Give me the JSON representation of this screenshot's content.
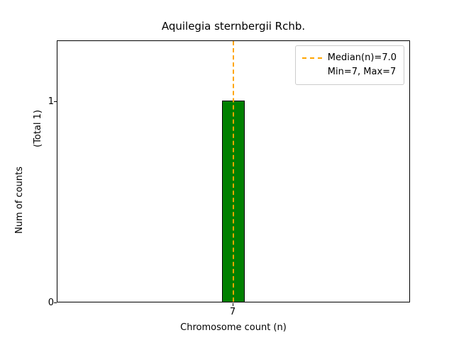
{
  "figure": {
    "title": "Aquilegia sternbergii Rchb.",
    "xlabel": "Chromosome count (n)",
    "ylabel": "Num of counts",
    "ylabel_total": "(Total 1)",
    "yticks": {
      "zero": "0",
      "one": "1"
    },
    "xtick": "7",
    "legend": {
      "median_label": "Median(n)=7.0",
      "minmax_label": "Min=7, Max=7"
    },
    "colors": {
      "bar_fill": "#008000",
      "bar_edge": "#000000",
      "median_line": "#FFA500",
      "axis": "#000000",
      "legend_border": "#cccccc"
    }
  },
  "chart_data": {
    "type": "bar",
    "title": "Aquilegia sternbergii Rchb.",
    "xlabel": "Chromosome count (n)",
    "ylabel": "Num of counts (Total 1)",
    "categories": [
      7
    ],
    "values": [
      1
    ],
    "total_counts": 1,
    "xlim_categories_visible": [
      7
    ],
    "ylim": [
      0,
      1.3
    ],
    "yticks": [
      0,
      1
    ],
    "bar_color": "green",
    "bar_edge_color": "black",
    "grid": false,
    "legend_position": "upper right",
    "legend_entries": [
      "Median(n)=7.0",
      "Min=7, Max=7"
    ],
    "annotations": [
      {
        "type": "vline",
        "x": 7,
        "style": "dashed",
        "color": "orange",
        "linewidth": 2,
        "label": "Median(n)=7.0"
      }
    ],
    "stats": {
      "median": 7.0,
      "min": 7,
      "max": 7
    }
  }
}
